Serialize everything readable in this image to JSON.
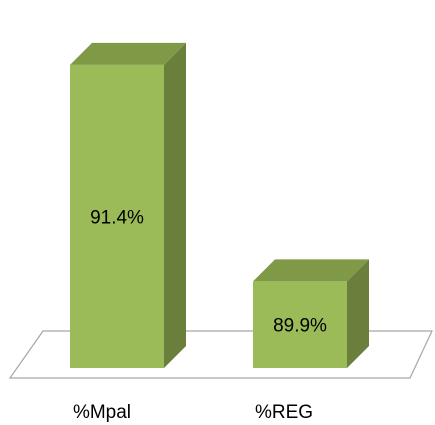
{
  "chart_data": {
    "type": "bar",
    "categories": [
      "%Mpal",
      "%REG"
    ],
    "values": [
      91.4,
      89.9
    ],
    "data_labels": [
      "91.4%",
      "89.9%"
    ],
    "title": "",
    "xlabel": "",
    "ylabel": "",
    "ylim": [
      89.3,
      91.6
    ],
    "grid": false,
    "legend": "none",
    "colors": {
      "bar_front": "#9bbb59",
      "bar_side": "#6b7f3c",
      "bar_top": "#7f9947",
      "floor_stroke": "#a6a6a6",
      "floor_fill": "#ffffff"
    }
  }
}
